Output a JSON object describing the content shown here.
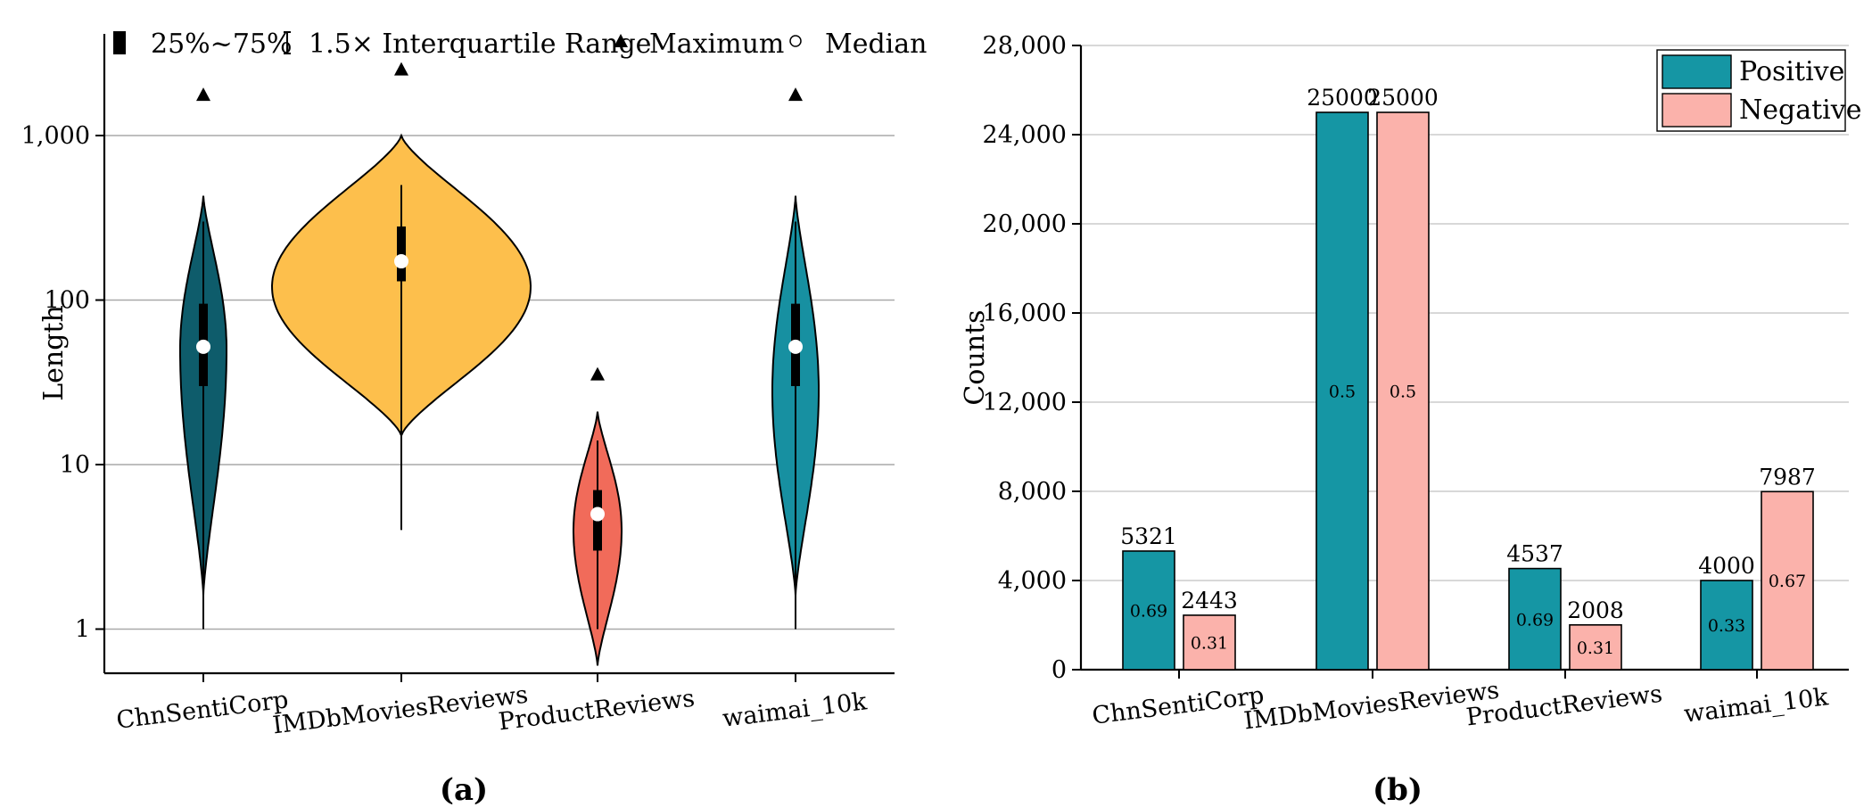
{
  "chart_data": [
    {
      "type": "violin",
      "panel_label": "a",
      "ylabel": "Length",
      "yscale": "log",
      "ylim": [
        0.5,
        3000
      ],
      "yticks": [
        1,
        10,
        100,
        1000
      ],
      "ytick_labels": [
        "1",
        "10",
        "100",
        "1,000"
      ],
      "categories": [
        "ChnSentiCorp",
        "IMDbMoviesReviews",
        "ProductReviews",
        "waimai_10k"
      ],
      "legend": {
        "placement": "top",
        "items": [
          "25%~75%",
          "1.5× Interquartile Range",
          "Maximum",
          "Median"
        ]
      },
      "series": [
        {
          "category": "ChnSentiCorp",
          "color": "#0e5c6b",
          "violin_min": 1.6,
          "violin_max": 430,
          "mode": 50,
          "q1": 30,
          "median": 52,
          "q3": 95,
          "whisker_low": 1,
          "whisker_high": 300,
          "maximum": 1750
        },
        {
          "category": "IMDbMoviesReviews",
          "color": "#fdbf4c",
          "violin_min": 15,
          "violin_max": 1000,
          "mode": 120,
          "q1": 130,
          "median": 172,
          "q3": 280,
          "whisker_low": 4,
          "whisker_high": 500,
          "maximum": 2500
        },
        {
          "category": "ProductReviews",
          "color": "#f16b5a",
          "violin_min": 0.6,
          "violin_max": 21,
          "mode": 4,
          "q1": 3,
          "median": 5,
          "q3": 7,
          "whisker_low": 1,
          "whisker_high": 14,
          "maximum": 35
        },
        {
          "category": "waimai_10k",
          "color": "#1790a1",
          "violin_min": 1.6,
          "violin_max": 430,
          "mode": 28,
          "q1": 30,
          "median": 52,
          "q3": 95,
          "whisker_low": 1,
          "whisker_high": 300,
          "maximum": 1750
        }
      ]
    },
    {
      "type": "bar",
      "panel_label": "b",
      "ylabel": "Counts",
      "ylim": [
        0,
        28000
      ],
      "yticks": [
        0,
        4000,
        8000,
        12000,
        16000,
        20000,
        24000,
        28000
      ],
      "ytick_labels": [
        "0",
        "4,000",
        "8,000",
        "12,000",
        "16,000",
        "20,000",
        "24,000",
        "28,000"
      ],
      "grid": true,
      "legend_placement": "top-right",
      "categories": [
        "ChnSentiCorp",
        "IMDbMoviesReviews",
        "ProductReviews",
        "waimai_10k"
      ],
      "series": [
        {
          "name": "Positive",
          "color": "#1596a4",
          "values": [
            5321,
            25000,
            4537,
            4000
          ],
          "value_labels": [
            "5321",
            "25000",
            "4537",
            "4000"
          ],
          "ratio_labels": [
            "0.69",
            "0.5",
            "0.69",
            "0.33"
          ]
        },
        {
          "name": "Negative",
          "color": "#fbb2ab",
          "values": [
            2443,
            25000,
            2008,
            7987
          ],
          "value_labels": [
            "2443",
            "25000",
            "2008",
            "7987"
          ],
          "ratio_labels": [
            "0.31",
            "0.5",
            "0.31",
            "0.67"
          ]
        }
      ]
    }
  ]
}
